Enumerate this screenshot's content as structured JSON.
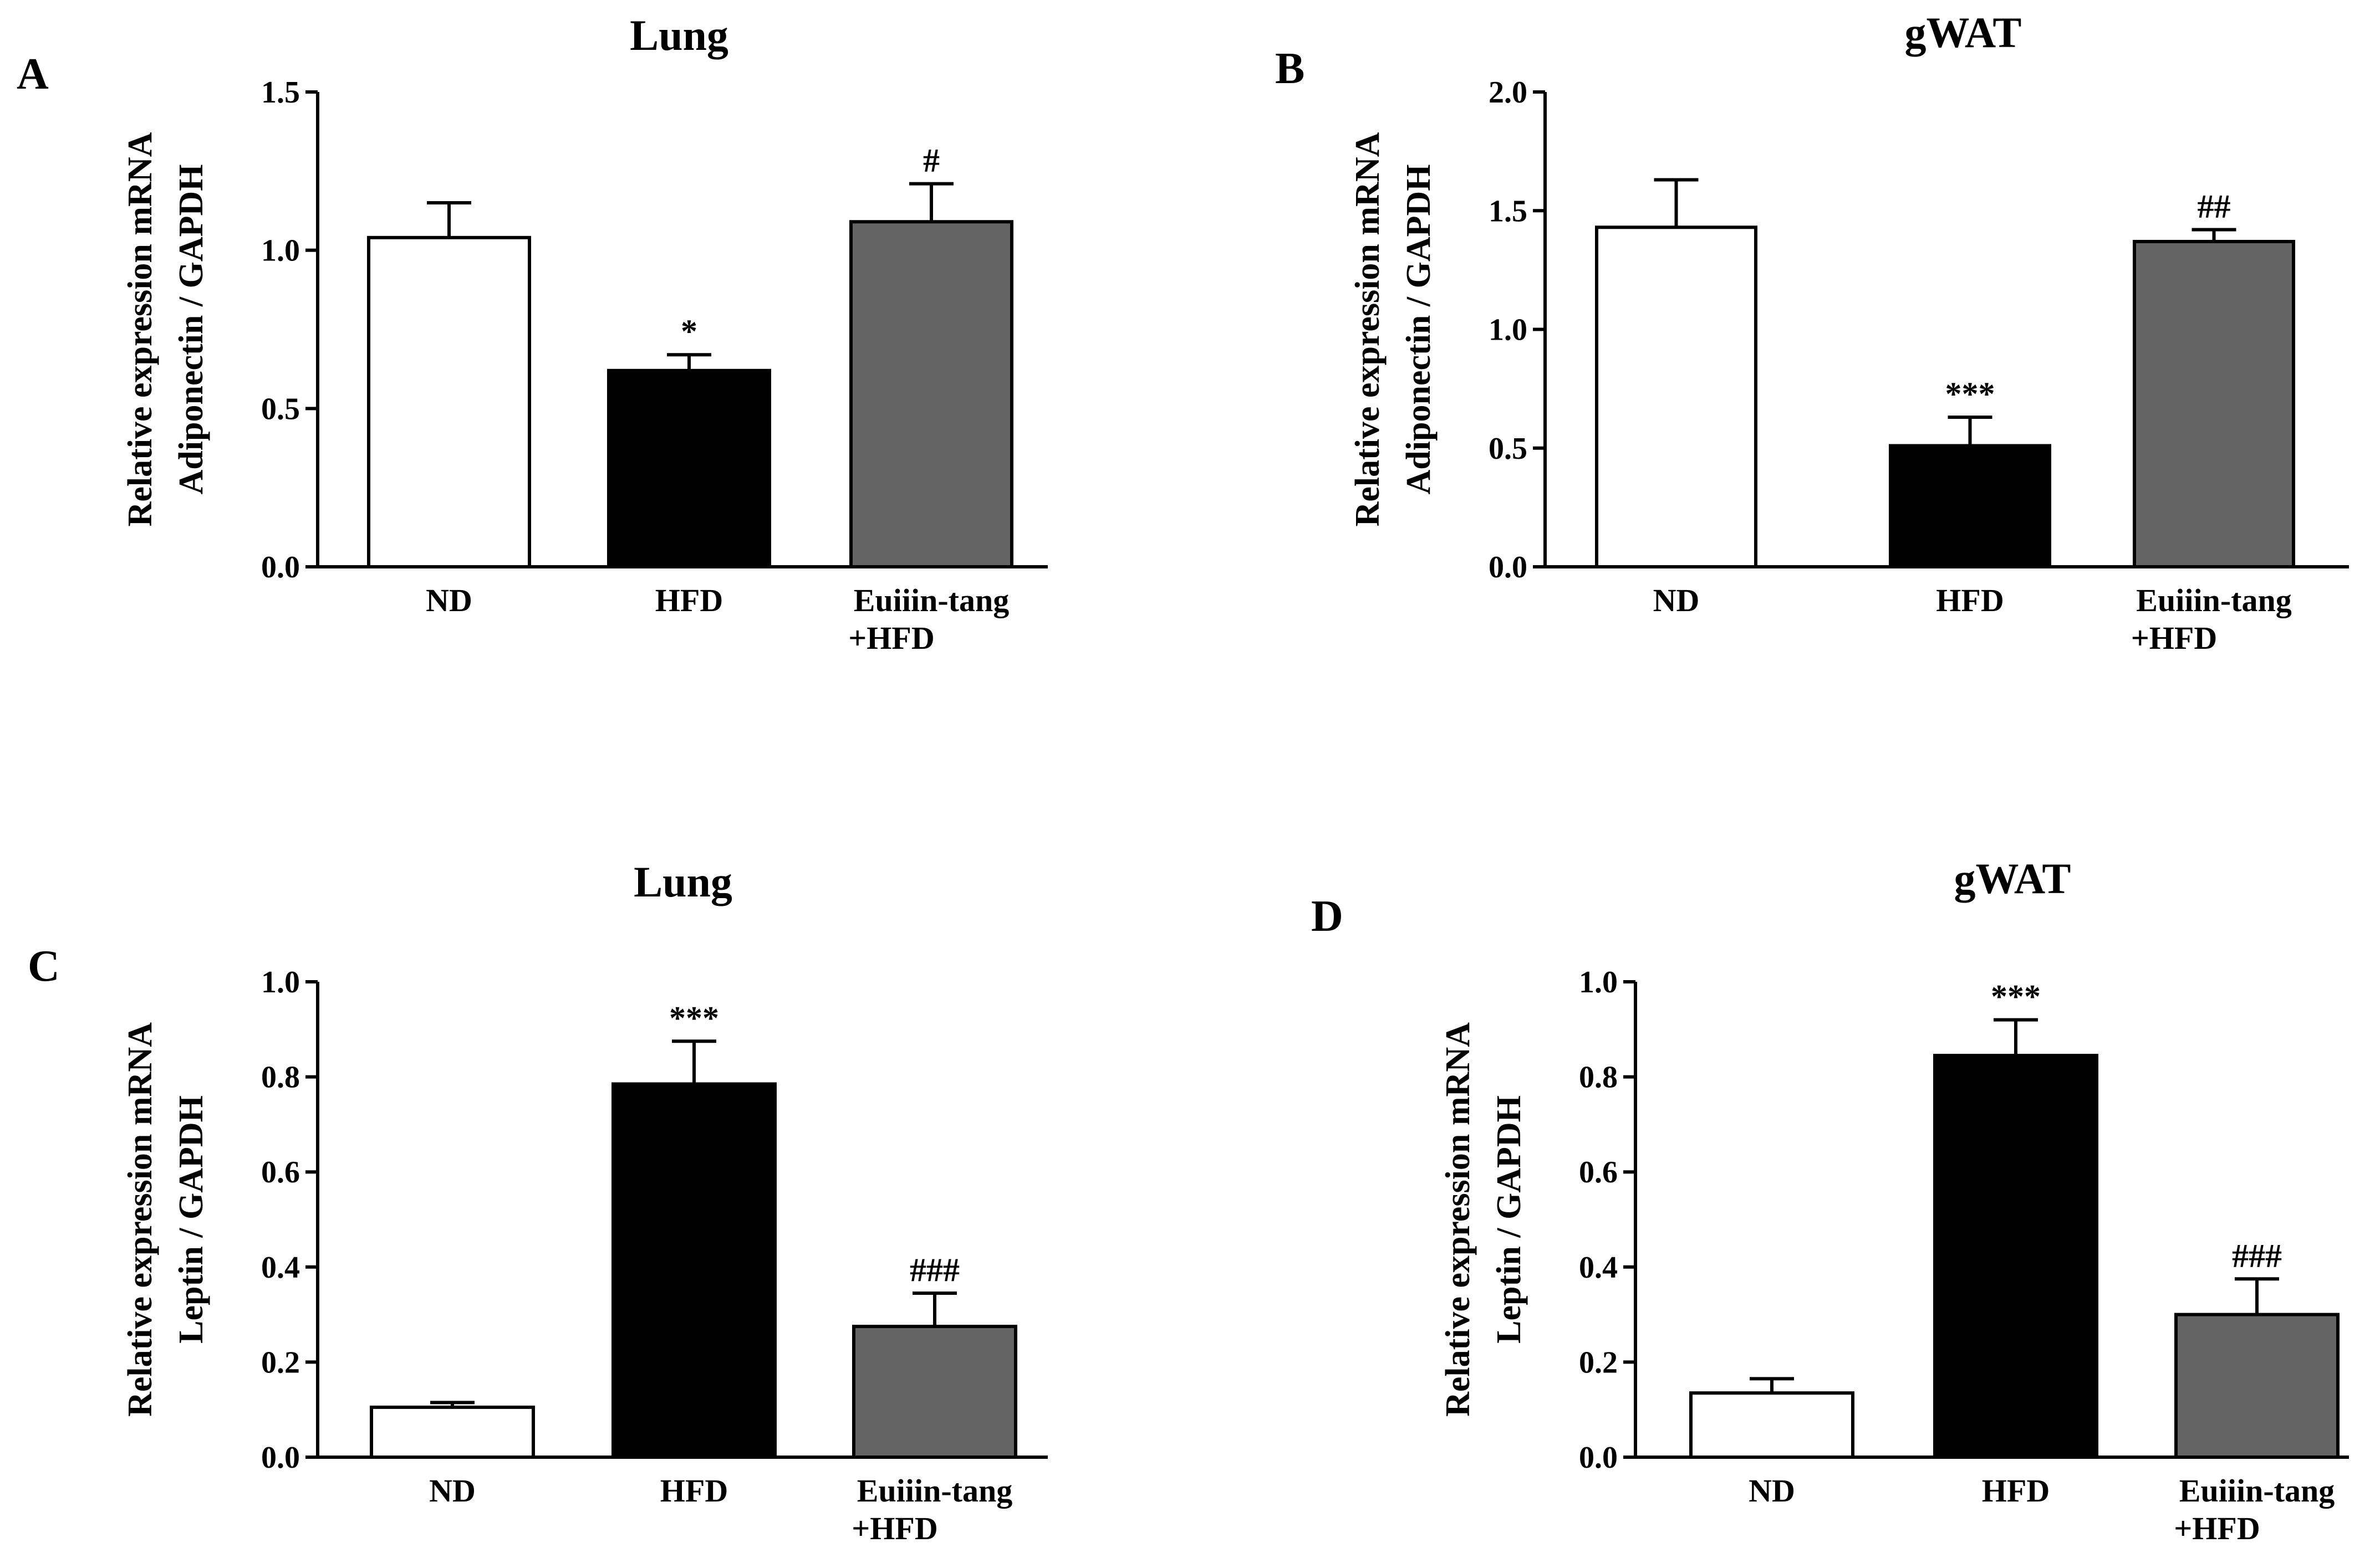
{
  "colors": {
    "ND": "#ffffff",
    "HFD": "#000000",
    "EUI": "#646464",
    "axis": "#000000"
  },
  "chart_data": [
    {
      "type": "bar",
      "panel": "A",
      "title": "Lung",
      "ylabel_lines": [
        "Relative expression mRNA",
        "Adiponectin / GAPDH"
      ],
      "ylim": [
        0,
        1.5
      ],
      "ticks": [
        "0.0",
        "0.5",
        "1.0",
        "1.5"
      ],
      "tick_values": [
        0,
        0.5,
        1.0,
        1.5
      ],
      "categories": [
        [
          "ND"
        ],
        [
          "HFD"
        ],
        [
          "Euiiin-tang",
          "+HFD"
        ]
      ],
      "values": [
        1.04,
        0.62,
        1.09
      ],
      "errors": [
        0.11,
        0.05,
        0.12
      ],
      "significance": [
        "",
        "*",
        "#"
      ]
    },
    {
      "type": "bar",
      "panel": "B",
      "title": "gWAT",
      "ylabel_lines": [
        "Relative expression mRNA",
        "Adiponectin / GAPDH"
      ],
      "ylim": [
        0,
        2.0
      ],
      "ticks": [
        "0.0",
        "0.5",
        "1.0",
        "1.5",
        "2.0"
      ],
      "tick_values": [
        0,
        0.5,
        1.0,
        1.5,
        2.0
      ],
      "categories": [
        [
          "ND"
        ],
        [
          "HFD"
        ],
        [
          "Euiiin-tang",
          "+HFD"
        ]
      ],
      "values": [
        1.43,
        0.51,
        1.37
      ],
      "errors": [
        0.2,
        0.12,
        0.05
      ],
      "significance": [
        "",
        "***",
        "##"
      ]
    },
    {
      "type": "bar",
      "panel": "C",
      "title": "Lung",
      "ylabel_lines": [
        "Relative expression mRNA",
        "Leptin / GAPDH"
      ],
      "ylim": [
        0,
        1.0
      ],
      "ticks": [
        "0.0",
        "0.2",
        "0.4",
        "0.6",
        "0.8",
        "1.0"
      ],
      "tick_values": [
        0,
        0.2,
        0.4,
        0.6,
        0.8,
        1.0
      ],
      "categories": [
        [
          "ND"
        ],
        [
          "HFD"
        ],
        [
          "Euiiin-tang",
          "+HFD"
        ]
      ],
      "values": [
        0.105,
        0.785,
        0.275
      ],
      "errors": [
        0.01,
        0.09,
        0.07
      ],
      "significance": [
        "",
        "***",
        "###"
      ]
    },
    {
      "type": "bar",
      "panel": "D",
      "title": "gWAT",
      "ylabel_lines": [
        "Relative expression mRNA",
        "Leptin / GAPDH"
      ],
      "ylim": [
        0,
        1.0
      ],
      "ticks": [
        "0.0",
        "0.2",
        "0.4",
        "0.6",
        "0.8",
        "1.0"
      ],
      "tick_values": [
        0,
        0.2,
        0.4,
        0.6,
        0.8,
        1.0
      ],
      "categories": [
        [
          "ND"
        ],
        [
          "HFD"
        ],
        [
          "Euiiin-tang",
          "+HFD"
        ]
      ],
      "values": [
        0.135,
        0.845,
        0.3
      ],
      "errors": [
        0.03,
        0.075,
        0.075
      ],
      "significance": [
        "",
        "***",
        "###"
      ]
    }
  ]
}
